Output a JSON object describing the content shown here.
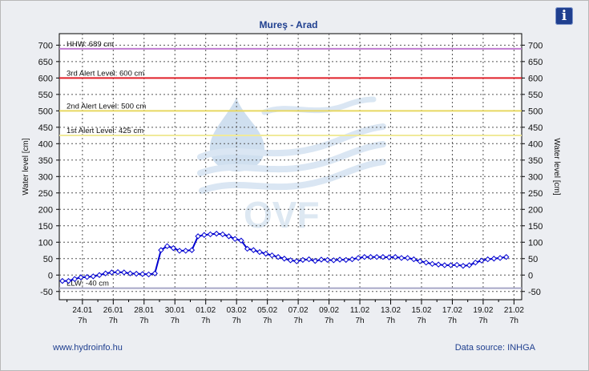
{
  "chart_data": {
    "type": "line",
    "title": "Mureş - Arad",
    "ylabel_left": "Water level [cm]",
    "ylabel_right": "Water level [cm]",
    "ylim": [
      -75,
      735
    ],
    "yticks": [
      -50,
      0,
      50,
      100,
      150,
      200,
      250,
      300,
      350,
      400,
      450,
      500,
      550,
      600,
      650,
      700
    ],
    "xlim_days": [
      0,
      30
    ],
    "xticks": [
      {
        "day": 1.5,
        "label": "24.01",
        "sub": "7h"
      },
      {
        "day": 3.5,
        "label": "26.01",
        "sub": "7h"
      },
      {
        "day": 5.5,
        "label": "28.01",
        "sub": "7h"
      },
      {
        "day": 7.5,
        "label": "30.01",
        "sub": "7h"
      },
      {
        "day": 9.5,
        "label": "01.02",
        "sub": "7h"
      },
      {
        "day": 11.5,
        "label": "03.02",
        "sub": "7h"
      },
      {
        "day": 13.5,
        "label": "05.02",
        "sub": "7h"
      },
      {
        "day": 15.5,
        "label": "07.02",
        "sub": "7h"
      },
      {
        "day": 17.5,
        "label": "09.02",
        "sub": "7h"
      },
      {
        "day": 19.5,
        "label": "11.02",
        "sub": "7h"
      },
      {
        "day": 21.5,
        "label": "13.02",
        "sub": "7h"
      },
      {
        "day": 23.5,
        "label": "15.02",
        "sub": "7h"
      },
      {
        "day": 25.5,
        "label": "17.02",
        "sub": "7h"
      },
      {
        "day": 27.5,
        "label": "19.02",
        "sub": "7h"
      },
      {
        "day": 29.5,
        "label": "21.02",
        "sub": "7h"
      }
    ],
    "levels": [
      {
        "label": "HHW: 689 cm",
        "value": 689,
        "color": "#c07ad0"
      },
      {
        "label": "3rd Alert Level: 600 cm",
        "value": 600,
        "color": "#e0202a"
      },
      {
        "label": "2nd Alert Level: 500 cm",
        "value": 500,
        "color": "#e8d860"
      },
      {
        "label": "1st Alert Level: 425 cm",
        "value": 425,
        "color": "#f0ea9a"
      },
      {
        "label": "LLW: -40 cm",
        "value": -40,
        "color": "#a7a7c7"
      }
    ],
    "series": [
      {
        "color": "#0000d0",
        "points": [
          [
            0.2,
            -18
          ],
          [
            0.6,
            -18
          ],
          [
            1.0,
            -12
          ],
          [
            1.4,
            -7
          ],
          [
            1.8,
            -6
          ],
          [
            2.2,
            -4
          ],
          [
            2.6,
            0
          ],
          [
            3.0,
            5
          ],
          [
            3.4,
            8
          ],
          [
            3.8,
            9
          ],
          [
            4.2,
            8
          ],
          [
            4.6,
            5
          ],
          [
            5.0,
            4
          ],
          [
            5.4,
            3
          ],
          [
            5.8,
            2
          ],
          [
            6.2,
            5
          ],
          [
            6.6,
            76
          ],
          [
            7.0,
            88
          ],
          [
            7.4,
            82
          ],
          [
            7.8,
            74
          ],
          [
            8.2,
            74
          ],
          [
            8.6,
            76
          ],
          [
            9.0,
            118
          ],
          [
            9.4,
            122
          ],
          [
            9.8,
            124
          ],
          [
            10.2,
            126
          ],
          [
            10.6,
            124
          ],
          [
            11.0,
            118
          ],
          [
            11.4,
            110
          ],
          [
            11.8,
            105
          ],
          [
            12.2,
            80
          ],
          [
            12.6,
            76
          ],
          [
            13.0,
            70
          ],
          [
            13.4,
            65
          ],
          [
            13.8,
            60
          ],
          [
            14.2,
            55
          ],
          [
            14.6,
            50
          ],
          [
            15.0,
            45
          ],
          [
            15.4,
            42
          ],
          [
            15.8,
            46
          ],
          [
            16.2,
            48
          ],
          [
            16.6,
            43
          ],
          [
            17.0,
            47
          ],
          [
            17.4,
            46
          ],
          [
            17.8,
            45
          ],
          [
            18.2,
            47
          ],
          [
            18.6,
            46
          ],
          [
            19.0,
            48
          ],
          [
            19.4,
            52
          ],
          [
            19.8,
            55
          ],
          [
            20.2,
            55
          ],
          [
            20.6,
            55
          ],
          [
            21.0,
            55
          ],
          [
            21.4,
            54
          ],
          [
            21.8,
            55
          ],
          [
            22.2,
            52
          ],
          [
            22.6,
            52
          ],
          [
            23.0,
            48
          ],
          [
            23.4,
            42
          ],
          [
            23.8,
            38
          ],
          [
            24.2,
            34
          ],
          [
            24.6,
            32
          ],
          [
            25.0,
            30
          ],
          [
            25.4,
            30
          ],
          [
            25.8,
            31
          ],
          [
            26.2,
            28
          ],
          [
            26.6,
            30
          ],
          [
            27.0,
            38
          ],
          [
            27.4,
            44
          ],
          [
            27.8,
            48
          ],
          [
            28.2,
            50
          ],
          [
            28.6,
            52
          ],
          [
            29.0,
            55
          ]
        ]
      }
    ]
  },
  "footer": {
    "left_link": "www.hydroinfo.hu",
    "right_text": "Data source: INHGA"
  },
  "watermark": {
    "text": "OVF"
  },
  "info_button": {
    "label": "i",
    "icon": "info-icon"
  }
}
